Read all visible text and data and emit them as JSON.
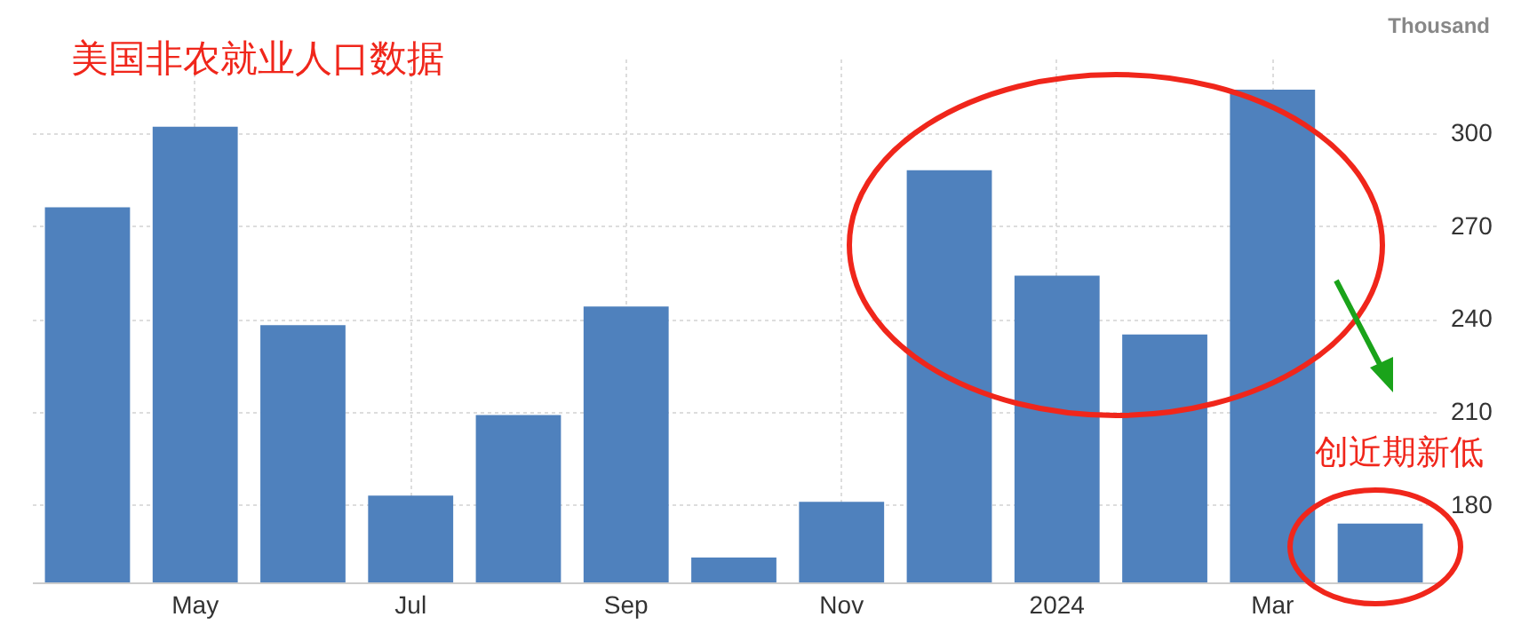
{
  "chart_data": {
    "type": "bar",
    "title": "美国非农就业人口数据",
    "ylabel": "Thousand",
    "categories": [
      null,
      "May",
      null,
      "Jul",
      null,
      "Sep",
      null,
      "Nov",
      null,
      "2024",
      null,
      "Mar",
      null
    ],
    "values": [
      276,
      302,
      238,
      183,
      209,
      244,
      163,
      181,
      288,
      254,
      235,
      314,
      174
    ],
    "color": "#4f81bd",
    "ylim": [
      155,
      324
    ],
    "yticks": [
      180,
      210,
      240,
      270,
      300
    ],
    "grid": true,
    "annotations": [
      "创近期新低"
    ]
  }
}
